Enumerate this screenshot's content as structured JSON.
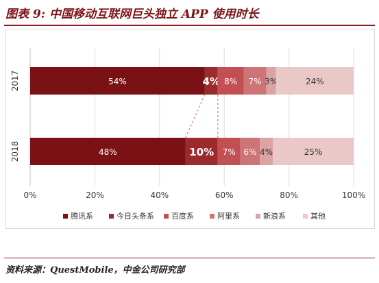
{
  "header": {
    "title": "图表 9:  中国移动互联网巨头独立 APP 使用时长"
  },
  "footer": {
    "source": "资料来源：QuestMobile，中金公司研究部"
  },
  "colors": {
    "title": "#7b1416",
    "rule": "#8b1a1d",
    "series": [
      "#7a1215",
      "#9b2a2d",
      "#c25052",
      "#cc7476",
      "#dca3a4",
      "#ebc8c8"
    ],
    "connector": "#e08e8e"
  },
  "chart_data": {
    "type": "bar",
    "orientation": "horizontal",
    "stacked": true,
    "categories": [
      "2017",
      "2018"
    ],
    "series": [
      {
        "name": "腾讯系",
        "values": [
          54,
          48
        ],
        "labels": [
          "54%",
          "48%"
        ]
      },
      {
        "name": "今日头条系",
        "values": [
          4,
          10
        ],
        "labels": [
          "4%",
          "10%"
        ]
      },
      {
        "name": "百度系",
        "values": [
          8,
          7
        ],
        "labels": [
          "8%",
          "7%"
        ]
      },
      {
        "name": "阿里系",
        "values": [
          7,
          6
        ],
        "labels": [
          "7%",
          "6%"
        ]
      },
      {
        "name": "新浪系",
        "values": [
          3,
          4
        ],
        "labels": [
          "3%",
          "4%"
        ]
      },
      {
        "name": "其他",
        "values": [
          24,
          25
        ],
        "labels": [
          "24%",
          "25%"
        ]
      }
    ],
    "xlim": [
      0,
      100
    ],
    "xticks": [
      "0%",
      "20%",
      "40%",
      "60%",
      "80%",
      "100%"
    ],
    "grid": true,
    "legend": "bottom",
    "annotation": "dashed connectors link 今日头条系 segments between 2017 and 2018"
  }
}
